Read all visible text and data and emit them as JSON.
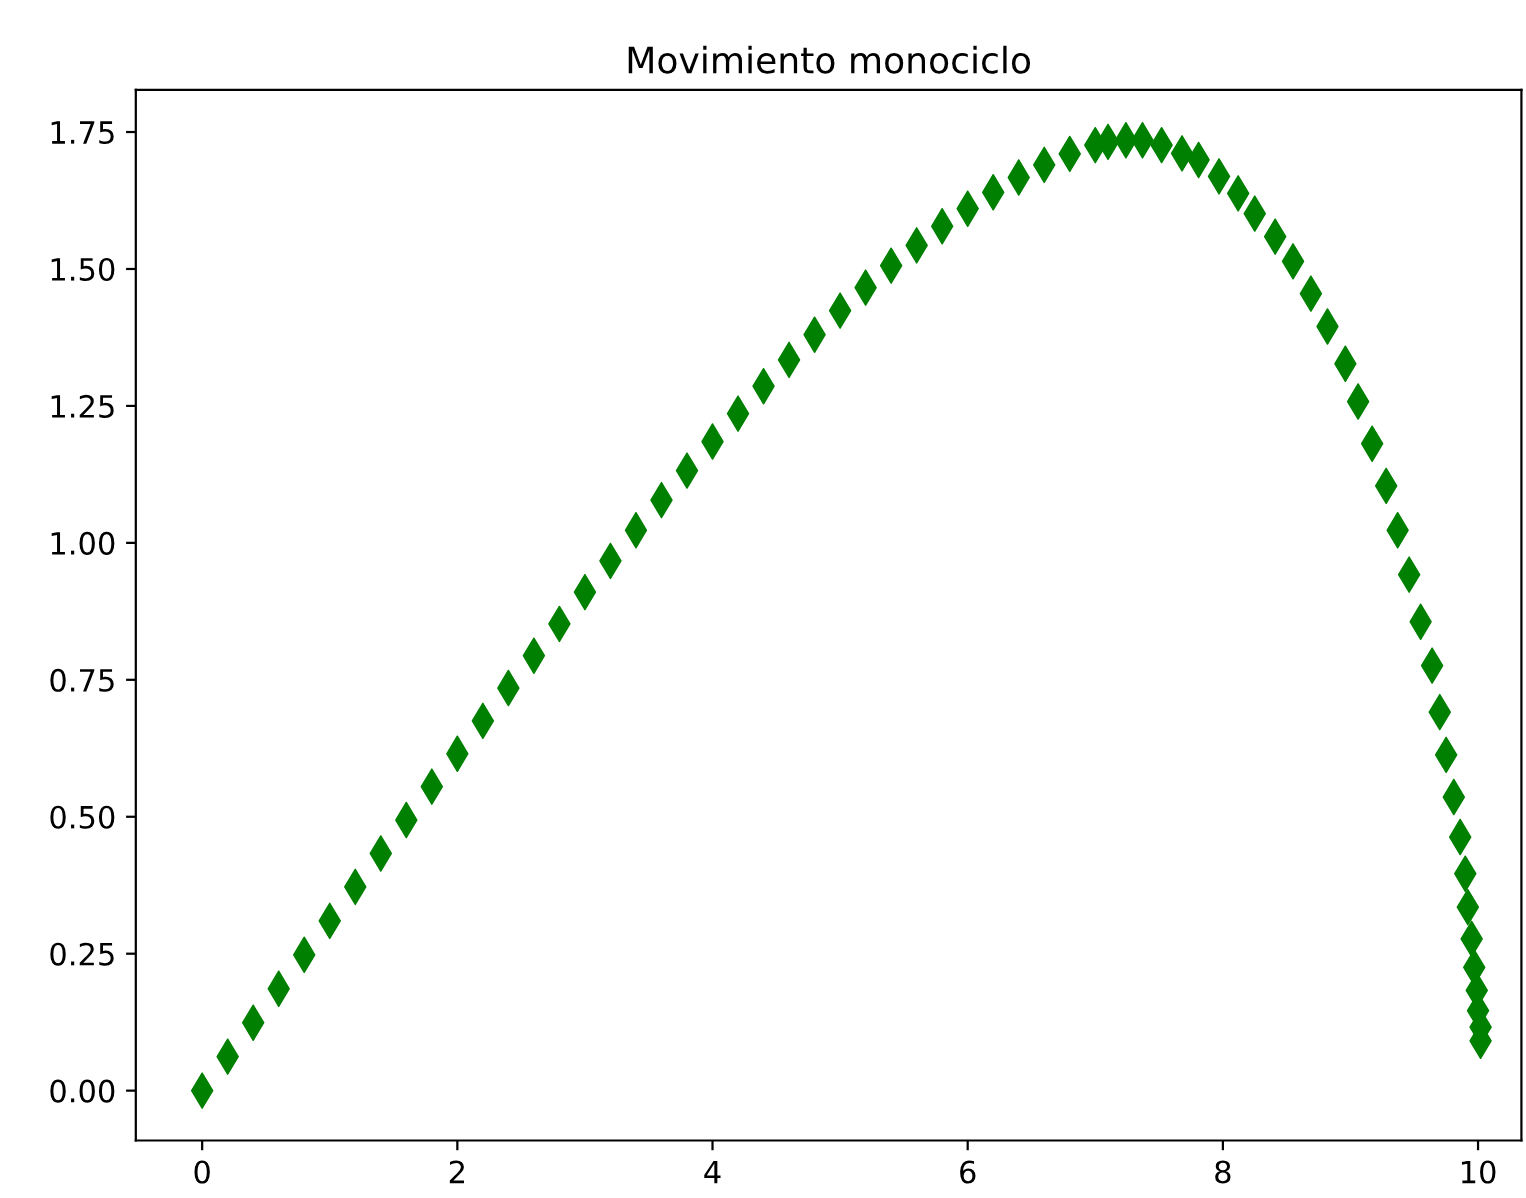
{
  "chart_data": {
    "type": "scatter",
    "title": "Movimiento monociclo",
    "marker": "diamond",
    "x": [
      0,
      0.2,
      0.4,
      0.6,
      0.8,
      1.0,
      1.2,
      1.4,
      1.6,
      1.8,
      2.0,
      2.2,
      2.4,
      2.6,
      2.8,
      3.0,
      3.2,
      3.4,
      3.6,
      3.8,
      4.0,
      4.2,
      4.4,
      4.6,
      4.8,
      5.0,
      5.2,
      5.4,
      5.6,
      5.8,
      6.0,
      6.2,
      6.4,
      6.6,
      6.8,
      7.0,
      7.1,
      7.24,
      7.37,
      7.52,
      7.68,
      7.81,
      7.97,
      8.12,
      8.25,
      8.41,
      8.55,
      8.69,
      8.82,
      8.96,
      9.06,
      9.17,
      9.28,
      9.37,
      9.46,
      9.55,
      9.64,
      9.7,
      9.75,
      9.81,
      9.86,
      9.9,
      9.92,
      9.95,
      9.97,
      9.99,
      10.0,
      10.02,
      10.02
    ],
    "series": [
      {
        "color": "#008000",
        "values": [
          0,
          0.062,
          0.124,
          0.186,
          0.248,
          0.31,
          0.372,
          0.433,
          0.494,
          0.555,
          0.615,
          0.675,
          0.735,
          0.794,
          0.852,
          0.91,
          0.967,
          1.023,
          1.078,
          1.132,
          1.185,
          1.236,
          1.286,
          1.334,
          1.38,
          1.424,
          1.466,
          1.506,
          1.543,
          1.578,
          1.61,
          1.64,
          1.667,
          1.69,
          1.71,
          1.726,
          1.732,
          1.735,
          1.735,
          1.726,
          1.711,
          1.699,
          1.669,
          1.638,
          1.601,
          1.559,
          1.514,
          1.455,
          1.395,
          1.327,
          1.258,
          1.181,
          1.104,
          1.023,
          0.942,
          0.856,
          0.776,
          0.691,
          0.613,
          0.536,
          0.463,
          0.396,
          0.335,
          0.277,
          0.225,
          0.183,
          0.146,
          0.116,
          0.091
        ]
      }
    ],
    "xlim": [
      -0.52,
      10.34
    ],
    "ylim": [
      -0.091,
      1.827
    ],
    "xticks": [
      0,
      2,
      4,
      6,
      8,
      10
    ],
    "yticks": [
      {
        "value": 0,
        "label": "0.00"
      },
      {
        "value": 0.25,
        "label": "0.25"
      },
      {
        "value": 0.5,
        "label": "0.50"
      },
      {
        "value": 0.75,
        "label": "0.75"
      },
      {
        "value": 1.0,
        "label": "1.00"
      },
      {
        "value": 1.25,
        "label": "1.25"
      },
      {
        "value": 1.5,
        "label": "1.50"
      },
      {
        "value": 1.75,
        "label": "1.75"
      }
    ]
  }
}
